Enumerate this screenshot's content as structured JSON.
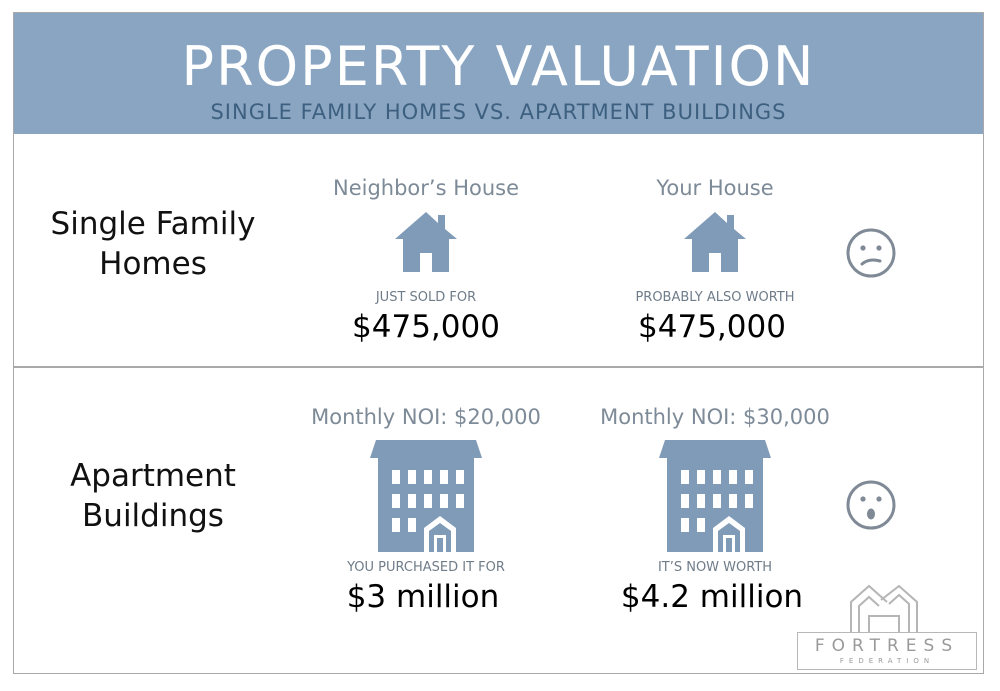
{
  "header": {
    "title": "PROPERTY VALUATION",
    "subtitle": "SINGLE FAMILY HOMES VS. APARTMENT BUILDINGS"
  },
  "rows": {
    "single_family": {
      "label_line1": "Single Family",
      "label_line2": "Homes",
      "left": {
        "title": "Neighbor’s House",
        "caption": "JUST SOLD FOR",
        "value": "$475,000",
        "icon": "house-icon"
      },
      "right": {
        "title": "Your House",
        "caption": "PROBABLY ALSO WORTH",
        "value": "$475,000",
        "icon": "house-icon"
      },
      "reaction_icon": "confused-face-icon"
    },
    "apartment": {
      "label_line1": "Apartment",
      "label_line2": "Buildings",
      "left": {
        "title": "Monthly NOI: $20,000",
        "caption": "YOU PURCHASED IT FOR",
        "value": "$3 million",
        "icon": "apartment-building-icon"
      },
      "right": {
        "title": "Monthly NOI: $30,000",
        "caption": "IT’S NOW WORTH",
        "value": "$4.2 million",
        "icon": "apartment-building-icon"
      },
      "reaction_icon": "surprised-face-icon"
    }
  },
  "logo": {
    "name": "FORTRESS",
    "sub": "FEDERATION"
  },
  "colors": {
    "header_bg": "#89a5c1",
    "subtitle": "#3e6080",
    "icon": "#7f9bb8",
    "muted_text": "#7d8a97",
    "border": "#a9a9a9"
  }
}
